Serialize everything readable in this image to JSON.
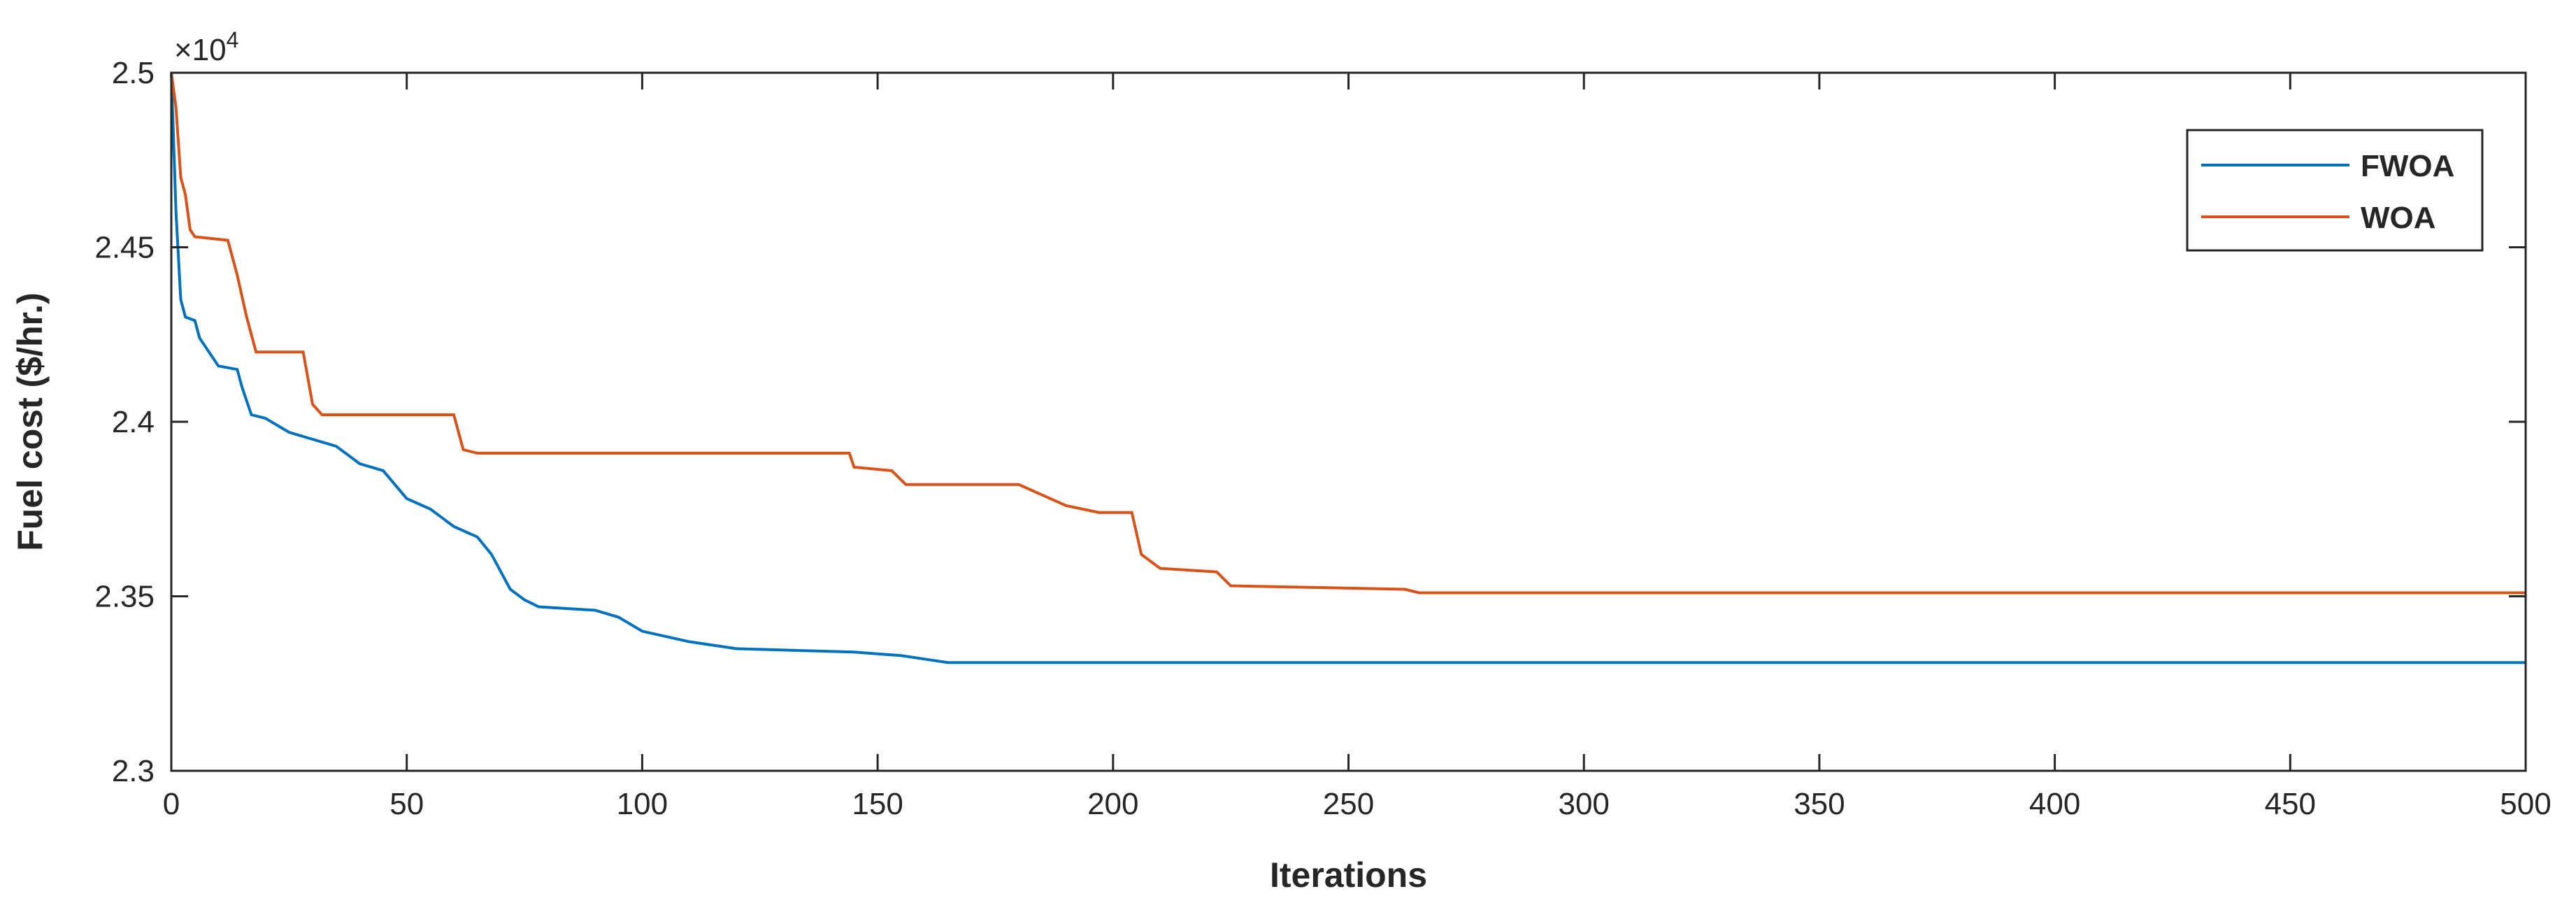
{
  "chart_data": {
    "type": "line",
    "title": "",
    "xlabel": "Iterations",
    "ylabel": "Fuel cost ($/hr.)",
    "xlim": [
      0,
      500
    ],
    "ylim": [
      23000,
      25000
    ],
    "x_ticks": [
      "0",
      "50",
      "100",
      "150",
      "200",
      "250",
      "300",
      "350",
      "400",
      "450",
      "500"
    ],
    "y_ticks": [
      "2.3",
      "2.35",
      "2.4",
      "2.45",
      "2.5"
    ],
    "y_multiplier": {
      "base": "×10",
      "exponent": "4"
    },
    "grid": false,
    "legend_position": "top-right",
    "series": [
      {
        "name": "FWOA",
        "color": "#0072BD",
        "points": [
          [
            0,
            25000
          ],
          [
            1,
            24600
          ],
          [
            2,
            24350
          ],
          [
            3,
            24300
          ],
          [
            5,
            24290
          ],
          [
            6,
            24240
          ],
          [
            8,
            24200
          ],
          [
            10,
            24160
          ],
          [
            14,
            24150
          ],
          [
            15,
            24100
          ],
          [
            17,
            24020
          ],
          [
            20,
            24010
          ],
          [
            25,
            23970
          ],
          [
            30,
            23950
          ],
          [
            35,
            23930
          ],
          [
            40,
            23880
          ],
          [
            45,
            23860
          ],
          [
            50,
            23780
          ],
          [
            55,
            23750
          ],
          [
            60,
            23700
          ],
          [
            65,
            23670
          ],
          [
            68,
            23620
          ],
          [
            72,
            23520
          ],
          [
            75,
            23490
          ],
          [
            78,
            23470
          ],
          [
            90,
            23460
          ],
          [
            95,
            23440
          ],
          [
            100,
            23400
          ],
          [
            110,
            23370
          ],
          [
            115,
            23360
          ],
          [
            120,
            23350
          ],
          [
            145,
            23340
          ],
          [
            155,
            23330
          ],
          [
            160,
            23320
          ],
          [
            165,
            23310
          ],
          [
            500,
            23310
          ]
        ]
      },
      {
        "name": "WOA",
        "color": "#D95319",
        "points": [
          [
            0,
            25000
          ],
          [
            1,
            24900
          ],
          [
            2,
            24700
          ],
          [
            3,
            24650
          ],
          [
            4,
            24550
          ],
          [
            5,
            24530
          ],
          [
            12,
            24520
          ],
          [
            14,
            24420
          ],
          [
            16,
            24300
          ],
          [
            18,
            24200
          ],
          [
            28,
            24200
          ],
          [
            30,
            24050
          ],
          [
            32,
            24020
          ],
          [
            60,
            24020
          ],
          [
            62,
            23920
          ],
          [
            65,
            23910
          ],
          [
            144,
            23910
          ],
          [
            145,
            23870
          ],
          [
            153,
            23860
          ],
          [
            156,
            23820
          ],
          [
            180,
            23820
          ],
          [
            185,
            23790
          ],
          [
            190,
            23760
          ],
          [
            197,
            23740
          ],
          [
            204,
            23740
          ],
          [
            206,
            23620
          ],
          [
            210,
            23580
          ],
          [
            222,
            23570
          ],
          [
            225,
            23530
          ],
          [
            262,
            23520
          ],
          [
            265,
            23510
          ],
          [
            500,
            23510
          ]
        ]
      }
    ]
  }
}
